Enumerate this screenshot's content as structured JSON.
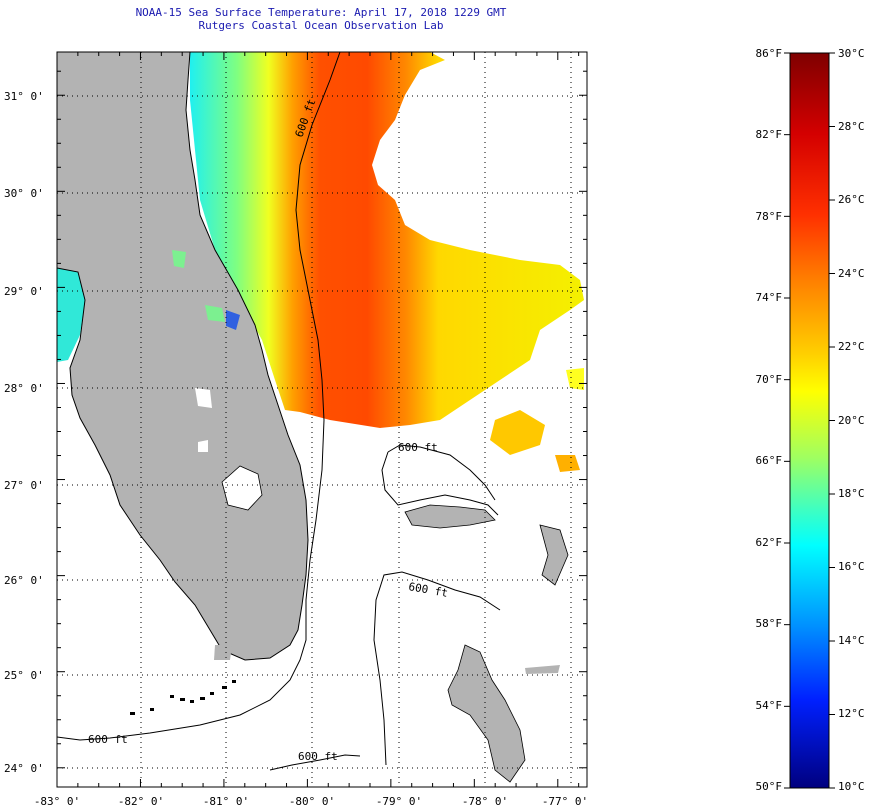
{
  "header": {
    "title_line_1": "NOAA-15 Sea Surface Temperature:  April 17, 2018 1229 GMT",
    "title_line_2": "Rutgers Coastal Ocean Observation Lab"
  },
  "map": {
    "region": "Florida and northern Bahamas",
    "lat_range": [
      23.8,
      31.45
    ],
    "lon_range": [
      -83.0,
      -76.65
    ],
    "lat_ticks": [
      {
        "value": 31,
        "label": "31° 0'"
      },
      {
        "value": 30,
        "label": "30° 0'"
      },
      {
        "value": 29,
        "label": "29° 0'"
      },
      {
        "value": 28,
        "label": "28° 0'"
      },
      {
        "value": 27,
        "label": "27° 0'"
      },
      {
        "value": 26,
        "label": "26° 0'"
      },
      {
        "value": 25,
        "label": "25° 0'"
      },
      {
        "value": 24,
        "label": "24° 0'"
      }
    ],
    "lon_ticks": [
      {
        "value": -83,
        "label": "-83° 0'"
      },
      {
        "value": -82,
        "label": "-82° 0'"
      },
      {
        "value": -81,
        "label": "-81° 0'"
      },
      {
        "value": -80,
        "label": "-80° 0'"
      },
      {
        "value": -79,
        "label": "-79° 0'"
      },
      {
        "value": -78,
        "label": "-78° 0'"
      },
      {
        "value": -77,
        "label": "-77° 0'"
      }
    ],
    "grid": "dotted",
    "contour_labels": [
      "600 ft",
      "600 ft",
      "600 ft",
      "600 ft",
      "600 ft"
    ],
    "land_color": "#b3b3b3",
    "no_data_color": "#ffffff"
  },
  "colorbar": {
    "fahrenheit": [
      {
        "value": 86,
        "label": "86°F"
      },
      {
        "value": 82,
        "label": "82°F"
      },
      {
        "value": 78,
        "label": "78°F"
      },
      {
        "value": 74,
        "label": "74°F"
      },
      {
        "value": 70,
        "label": "70°F"
      },
      {
        "value": 66,
        "label": "66°F"
      },
      {
        "value": 62,
        "label": "62°F"
      },
      {
        "value": 58,
        "label": "58°F"
      },
      {
        "value": 54,
        "label": "54°F"
      },
      {
        "value": 50,
        "label": "50°F"
      }
    ],
    "celsius": [
      {
        "value": 30,
        "label": "30°C"
      },
      {
        "value": 28,
        "label": "28°C"
      },
      {
        "value": 26,
        "label": "26°C"
      },
      {
        "value": 24,
        "label": "24°C"
      },
      {
        "value": 22,
        "label": "22°C"
      },
      {
        "value": 20,
        "label": "20°C"
      },
      {
        "value": 18,
        "label": "18°C"
      },
      {
        "value": 16,
        "label": "16°C"
      },
      {
        "value": 14,
        "label": "14°C"
      },
      {
        "value": 12,
        "label": "12°C"
      },
      {
        "value": 10,
        "label": "10°C"
      }
    ],
    "colors": [
      "#7f0000",
      "#ff0000",
      "#ff8000",
      "#ffff00",
      "#80ff80",
      "#00ffff",
      "#0080ff",
      "#0000ff",
      "#00007f"
    ]
  }
}
